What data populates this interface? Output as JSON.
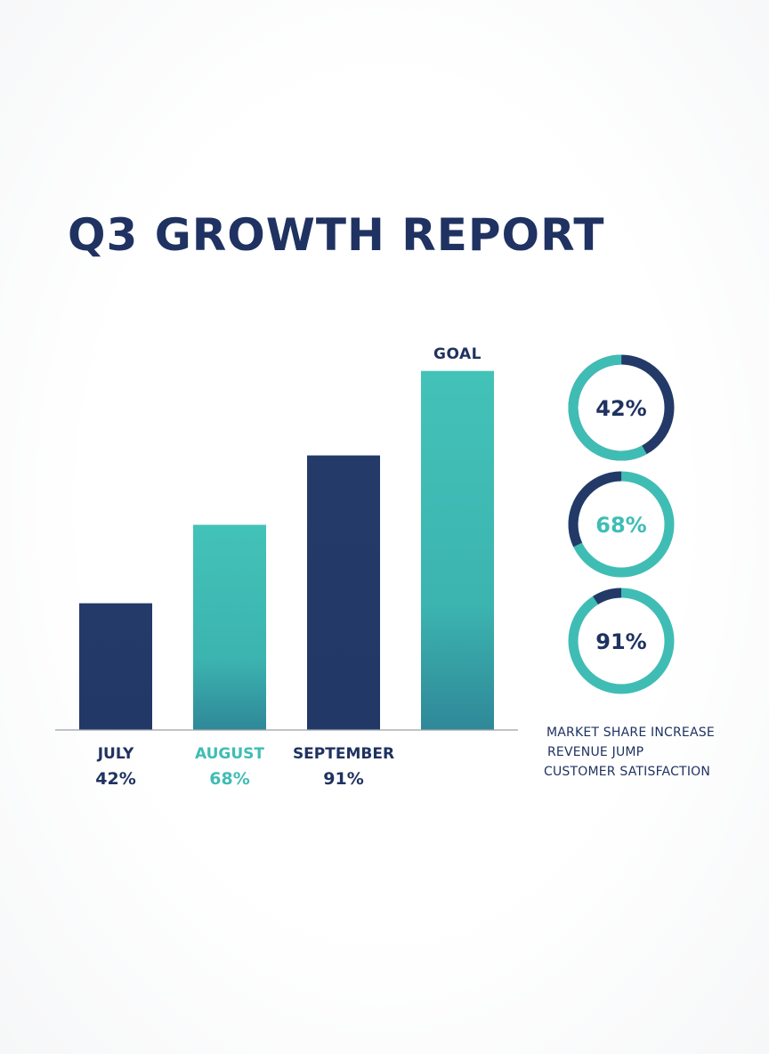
{
  "title": "Q3 GROWTH REPORT",
  "colors": {
    "navy": "#233a68",
    "teal": "#3fbdb5",
    "teal_dark": "#2f8c9a",
    "axis": "#9aa0a8",
    "text_navy": "#1f3261"
  },
  "chart_data": {
    "type": "bar",
    "categories": [
      "JULY",
      "AUGUST",
      "SEPTEMBER",
      ""
    ],
    "values": [
      42,
      68,
      91,
      119
    ],
    "value_labels": [
      "42%",
      "68%",
      "91%",
      ""
    ],
    "bar_colors": [
      "navy",
      "teal",
      "navy",
      "teal"
    ],
    "goal_label": "GOAL",
    "ylim": [
      0,
      130
    ],
    "xlabel": "",
    "ylabel": "",
    "grid": false
  },
  "donuts": [
    {
      "label": "42%",
      "value": 42,
      "ring_color": "navy",
      "arc_color": "teal",
      "text_color": "navy"
    },
    {
      "label": "68%",
      "value": 68,
      "ring_color": "teal",
      "arc_color": "navy",
      "text_color": "teal"
    },
    {
      "label": "91%",
      "value": 91,
      "ring_color": "teal",
      "arc_color": "navy",
      "text_color": "navy"
    }
  ],
  "legend": [
    "MARKET SHARE INCREASE",
    "REVENUE JUMP",
    "CUSTOMER SATISFACTION"
  ]
}
